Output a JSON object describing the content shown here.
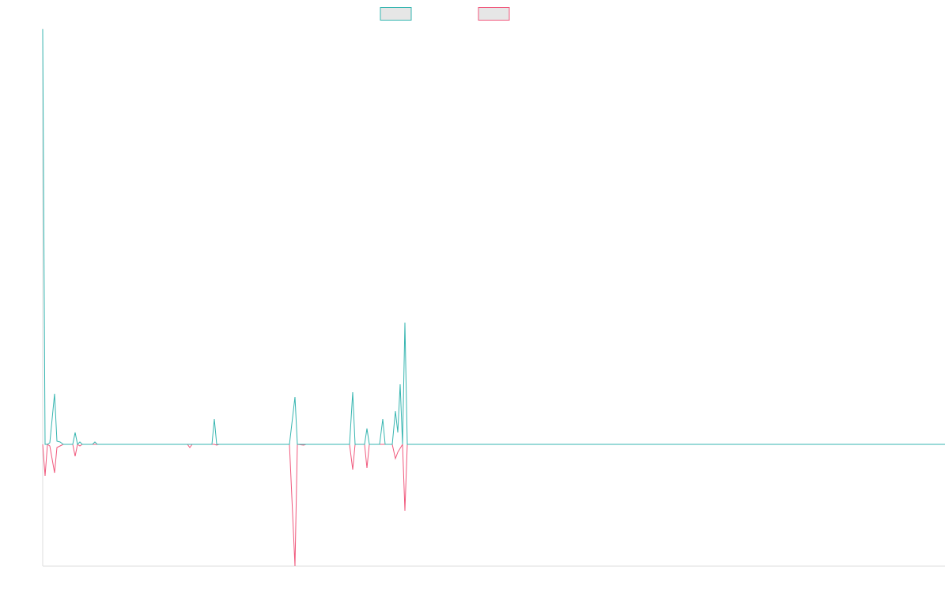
{
  "chart_data": {
    "type": "line",
    "x": [
      0,
      3,
      6,
      9,
      15,
      18,
      22,
      26,
      38,
      41,
      44,
      47,
      50,
      63,
      66,
      69,
      183,
      186,
      189,
      214,
      217,
      220,
      223,
      312,
      319,
      322,
      330,
      333,
      388,
      392,
      395,
      407,
      410,
      413,
      426,
      430,
      433,
      442,
      446,
      449,
      452,
      455,
      458,
      461,
      1141
    ],
    "series": [
      {
        "color": "#36b5b0",
        "values": [
          525,
          0,
          0,
          2,
          64,
          4,
          3,
          0,
          0,
          15,
          0,
          3,
          0,
          0,
          3,
          0,
          0,
          0,
          0,
          0,
          32,
          0,
          0,
          0,
          60,
          0,
          0,
          0,
          0,
          66,
          0,
          0,
          20,
          0,
          0,
          32,
          0,
          0,
          42,
          15,
          76,
          0,
          154,
          0,
          0
        ]
      },
      {
        "color": "#f0587c",
        "values": [
          0,
          -40,
          0,
          -2,
          -36,
          -4,
          -2,
          0,
          0,
          -15,
          0,
          -2,
          0,
          0,
          0,
          0,
          0,
          -4,
          0,
          0,
          0,
          -1,
          0,
          0,
          -154,
          0,
          -1,
          0,
          0,
          -32,
          0,
          0,
          -30,
          0,
          0,
          0,
          0,
          0,
          -18,
          -10,
          -5,
          0,
          -84,
          0,
          0
        ]
      }
    ],
    "xlim": [
      0,
      1141
    ],
    "ylim": [
      -154,
      526
    ]
  }
}
